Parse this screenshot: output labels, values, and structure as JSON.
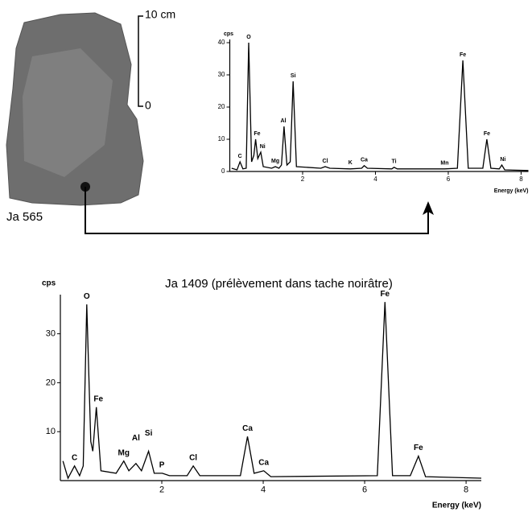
{
  "photo": {
    "label": "Ja 565",
    "scale_top": "10 cm",
    "scale_bottom": "0"
  },
  "chart_data": [
    {
      "type": "line",
      "y_label": "cps",
      "x_label": "Energy (keV)",
      "color": "#000000",
      "xlim": [
        0,
        8.2
      ],
      "ylim": [
        0,
        41
      ],
      "xticks": [
        2,
        4,
        6,
        8
      ],
      "yticks": [
        0,
        10,
        20,
        30,
        40
      ],
      "x": [
        0.05,
        0.2,
        0.28,
        0.36,
        0.45,
        0.52,
        0.6,
        0.66,
        0.71,
        0.77,
        0.85,
        0.92,
        1.15,
        1.25,
        1.35,
        1.42,
        1.49,
        1.57,
        1.66,
        1.74,
        1.83,
        2.5,
        2.62,
        2.75,
        3.31,
        3.62,
        3.69,
        3.78,
        4.45,
        4.51,
        4.6,
        5.9,
        6.25,
        6.4,
        6.55,
        6.95,
        7.06,
        7.17,
        7.4,
        7.47,
        7.55,
        8.2
      ],
      "values": [
        1,
        0.5,
        3,
        0.8,
        1,
        40,
        3,
        5,
        10,
        4,
        6,
        1.5,
        1,
        1.5,
        1,
        2,
        14,
        2,
        3,
        28,
        1.5,
        1,
        1.5,
        1,
        0.8,
        1,
        1.8,
        1,
        0.8,
        1.3,
        0.8,
        0.8,
        1,
        34.5,
        1,
        1,
        10,
        1,
        0.8,
        2,
        0.5,
        0.3
      ],
      "annotations": [
        {
          "text": "C",
          "x": 0.28,
          "y": 3
        },
        {
          "text": "O",
          "x": 0.52,
          "y": 40
        },
        {
          "text": "Fe",
          "x": 0.75,
          "y": 10
        },
        {
          "text": "Ni",
          "x": 0.9,
          "y": 6
        },
        {
          "text": "Mg",
          "x": 1.25,
          "y": 1.5
        },
        {
          "text": "Al",
          "x": 1.47,
          "y": 14
        },
        {
          "text": "Si",
          "x": 1.74,
          "y": 28
        },
        {
          "text": "Cl",
          "x": 2.62,
          "y": 1.5
        },
        {
          "text": "K",
          "x": 3.31,
          "y": 1
        },
        {
          "text": "Ca",
          "x": 3.69,
          "y": 1.8
        },
        {
          "text": "Ti",
          "x": 4.51,
          "y": 1.3
        },
        {
          "text": "Mn",
          "x": 5.9,
          "y": 0.8
        },
        {
          "text": "Fe",
          "x": 6.4,
          "y": 34.5
        },
        {
          "text": "Fe",
          "x": 7.06,
          "y": 10
        },
        {
          "text": "Ni",
          "x": 7.5,
          "y": 2
        }
      ]
    },
    {
      "type": "line",
      "title": "Ja 1409 (prélèvement dans tache noirâtre)",
      "y_label": "cps",
      "x_label": "Energy (keV)",
      "color": "#000000",
      "xlim": [
        0,
        8.3
      ],
      "ylim": [
        0,
        38
      ],
      "xticks": [
        2,
        4,
        6,
        8
      ],
      "yticks": [
        10,
        20,
        30
      ],
      "x": [
        0.05,
        0.15,
        0.28,
        0.38,
        0.45,
        0.52,
        0.6,
        0.64,
        0.71,
        0.8,
        1.1,
        1.25,
        1.35,
        1.49,
        1.6,
        1.74,
        1.85,
        2.01,
        2.15,
        2.5,
        2.62,
        2.75,
        3.55,
        3.69,
        3.82,
        4.01,
        4.15,
        6.25,
        6.4,
        6.55,
        6.9,
        7.06,
        7.2,
        8.3
      ],
      "values": [
        4,
        0.5,
        3,
        1,
        3,
        36,
        8,
        6,
        15,
        2,
        1.5,
        4,
        2,
        3.5,
        2,
        6,
        1.5,
        1.5,
        1,
        1,
        3,
        1,
        1,
        9,
        1.5,
        2,
        0.8,
        1,
        36.5,
        1,
        1,
        5,
        0.8,
        0.5
      ],
      "annotations": [
        {
          "text": "C",
          "x": 0.28,
          "y": 3
        },
        {
          "text": "O",
          "x": 0.52,
          "y": 36
        },
        {
          "text": "Fe",
          "x": 0.75,
          "y": 15
        },
        {
          "text": "Mg",
          "x": 1.25,
          "y": 4
        },
        {
          "text": "Al",
          "x": 1.49,
          "y": 7
        },
        {
          "text": "Si",
          "x": 1.74,
          "y": 8
        },
        {
          "text": "P",
          "x": 2.0,
          "y": 1.5
        },
        {
          "text": "Cl",
          "x": 2.62,
          "y": 3
        },
        {
          "text": "Ca",
          "x": 3.69,
          "y": 9
        },
        {
          "text": "Ca",
          "x": 4.01,
          "y": 2
        },
        {
          "text": "Fe",
          "x": 6.4,
          "y": 36.5
        },
        {
          "text": "Fe",
          "x": 7.06,
          "y": 5
        }
      ]
    }
  ]
}
